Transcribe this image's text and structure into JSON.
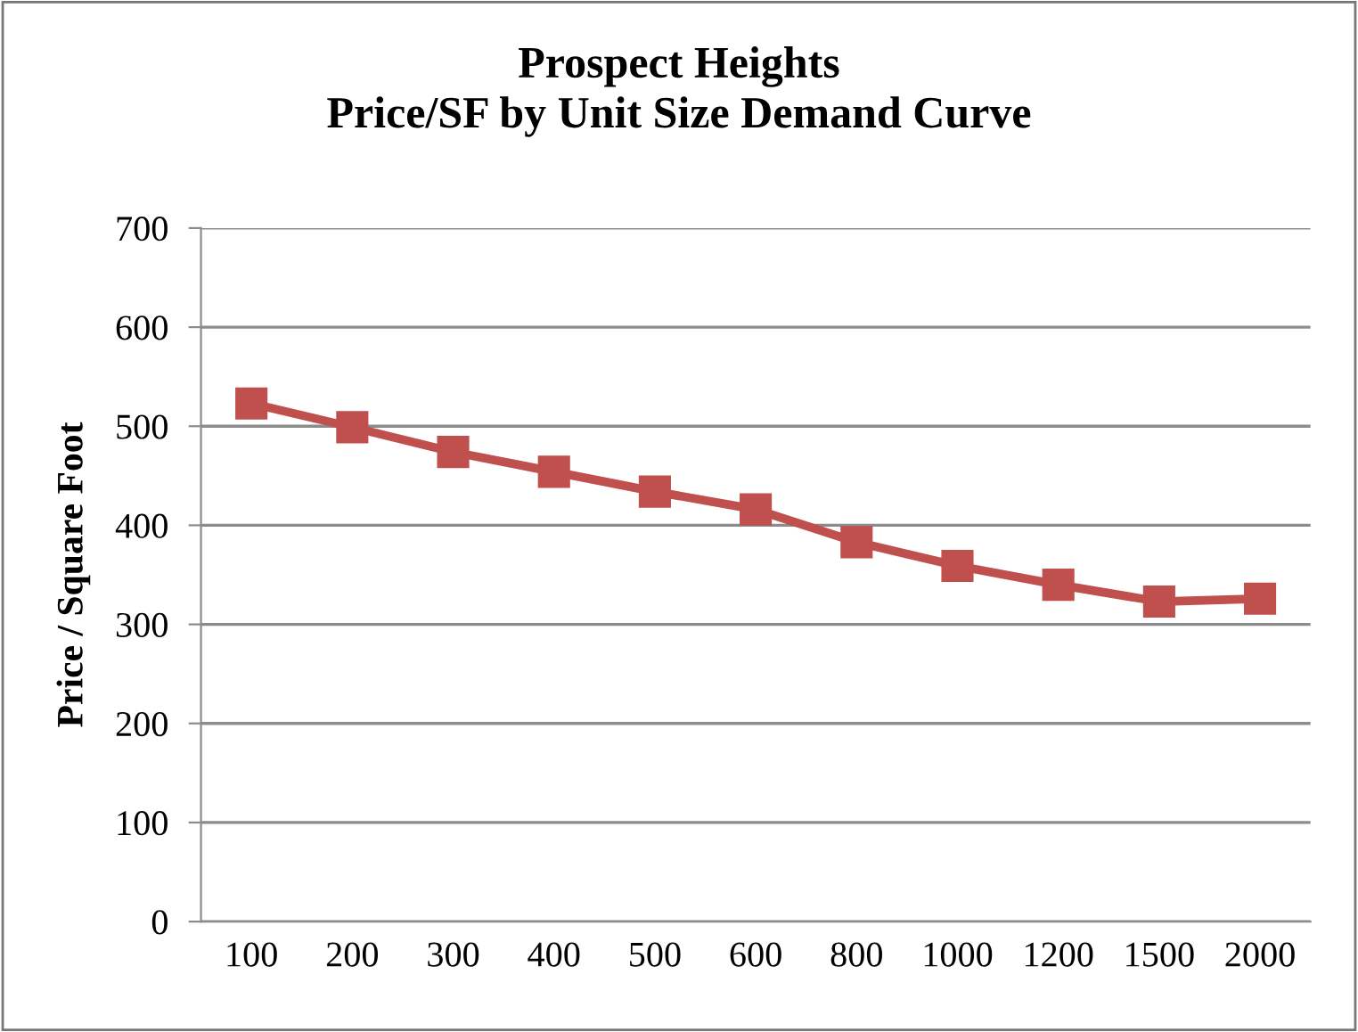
{
  "chart_data": {
    "type": "line",
    "title": "Prospect Heights\nPrice/SF by Unit Size Demand Curve",
    "ylabel": "Price / Square Foot",
    "categories": [
      "100",
      "200",
      "300",
      "400",
      "500",
      "600",
      "800",
      "1000",
      "1200",
      "1500",
      "2000"
    ],
    "series": [
      {
        "color": "#c0504d",
        "values": [
          523,
          499,
          474,
          454,
          434,
          416,
          383,
          359,
          340,
          323,
          326
        ]
      }
    ],
    "ylim": [
      0,
      700
    ],
    "yticks": [
      0,
      100,
      200,
      300,
      400,
      500,
      600,
      700
    ],
    "grid": "y",
    "marker": "square",
    "line_style": "solid",
    "legend": false
  }
}
